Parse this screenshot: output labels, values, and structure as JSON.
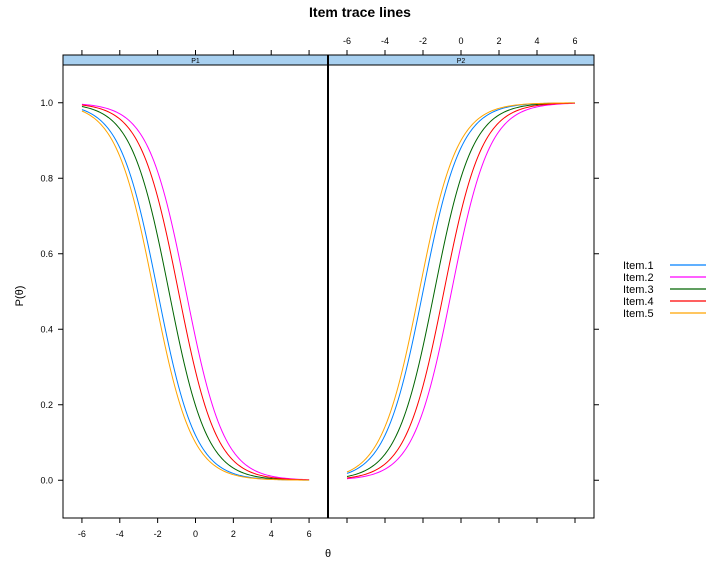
{
  "chart_data": {
    "type": "line",
    "title": "Item trace lines",
    "xlabel": "θ",
    "ylabel": "P(θ)",
    "xlim": [
      -7,
      7
    ],
    "ylim": [
      -0.1,
      1.1
    ],
    "xticks": [
      -6,
      -4,
      -2,
      0,
      2,
      4,
      6
    ],
    "yticks": [
      0.0,
      0.2,
      0.4,
      0.6,
      0.8,
      1.0
    ],
    "ytick_labels": [
      "0.0",
      "0.2",
      "0.4",
      "0.6",
      "0.8",
      "1.0"
    ],
    "x_range": [
      -6,
      6
    ],
    "legend_position": "right",
    "panels": [
      {
        "name": "P1",
        "direction": "decreasing"
      },
      {
        "name": "P2",
        "direction": "increasing"
      }
    ],
    "series": [
      {
        "name": "Item.1",
        "color": "#0080ff",
        "discrimination": 1.0,
        "location": -2.0
      },
      {
        "name": "Item.2",
        "color": "#ff00ff",
        "discrimination": 1.0,
        "location": -0.5
      },
      {
        "name": "Item.3",
        "color": "#006400",
        "discrimination": 1.0,
        "location": -1.4
      },
      {
        "name": "Item.4",
        "color": "#ff0000",
        "discrimination": 1.0,
        "location": -0.9
      },
      {
        "name": "Item.5",
        "color": "#ffa500",
        "discrimination": 1.0,
        "location": -2.2
      }
    ]
  },
  "colors": {
    "strip_background": "#a8d0f0"
  }
}
